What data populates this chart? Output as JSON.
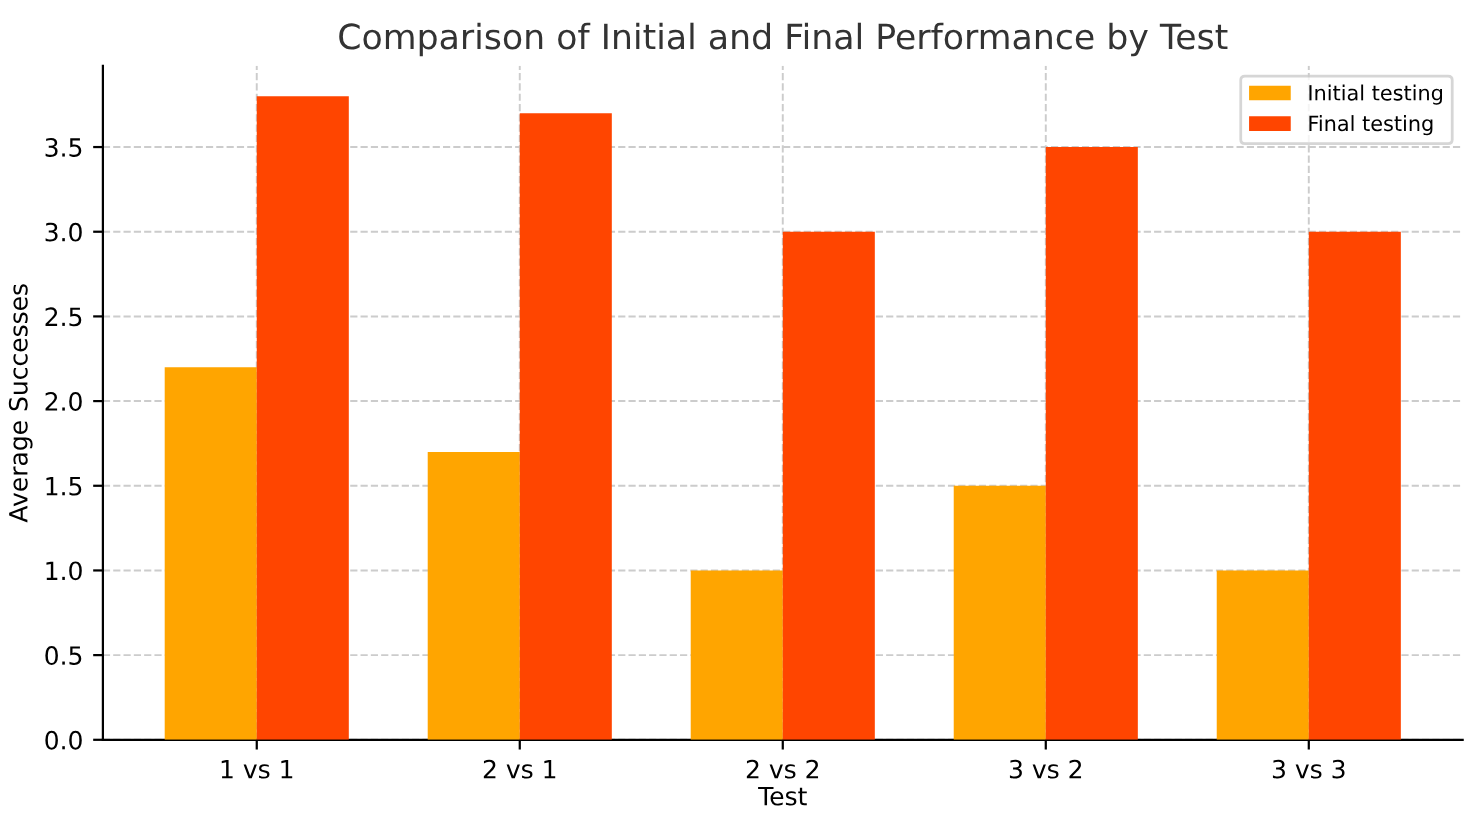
{
  "chart_data": {
    "type": "bar",
    "title": "Comparison of Initial and Final Performance by Test",
    "xlabel": "Test",
    "ylabel": "Average Successes",
    "categories": [
      "1 vs 1",
      "2 vs 1",
      "2 vs 2",
      "3 vs 2",
      "3 vs 3"
    ],
    "series": [
      {
        "name": "Initial testing",
        "color": "#ffa500",
        "values": [
          2.2,
          1.7,
          1.0,
          1.5,
          1.0
        ]
      },
      {
        "name": "Final testing",
        "color": "#ff4500",
        "values": [
          3.8,
          3.7,
          3.0,
          3.5,
          3.0
        ]
      }
    ],
    "ylim": [
      0,
      3.98
    ],
    "yticks": [
      {
        "value": 0,
        "label": "0.0"
      },
      0.5,
      {
        "value": 1,
        "label": "1.0"
      },
      1.5,
      {
        "value": 2,
        "label": "2.0"
      },
      2.5,
      {
        "value": 3,
        "label": "3.0"
      },
      3.5
    ],
    "grid": true,
    "legend": "top right"
  }
}
